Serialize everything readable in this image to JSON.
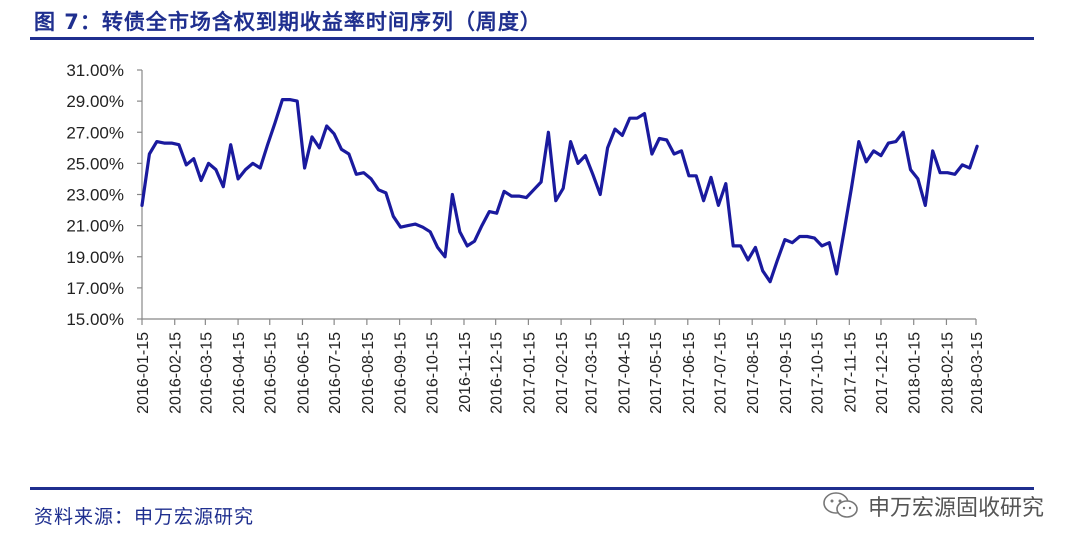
{
  "title": "图 7：转债全市场含权到期收益率时间序列（周度）",
  "source": "资料来源：申万宏源研究",
  "watermark": "申万宏源固收研究",
  "colors": {
    "accent": "#1f2f8f",
    "line": "#1a1a9e"
  },
  "icons": {
    "watermark_icon": "wechat-icon"
  },
  "chart_data": {
    "type": "line",
    "title": "",
    "xlabel": "",
    "ylabel": "",
    "ylim": [
      15,
      31
    ],
    "yticks": [
      "15.00%",
      "17.00%",
      "19.00%",
      "21.00%",
      "23.00%",
      "25.00%",
      "27.00%",
      "29.00%",
      "31.00%"
    ],
    "xticks": [
      "2016-01-15",
      "2016-02-15",
      "2016-03-15",
      "2016-04-15",
      "2016-05-15",
      "2016-06-15",
      "2016-07-15",
      "2016-08-15",
      "2016-09-15",
      "2016-10-15",
      "2016-11-15",
      "2016-12-15",
      "2017-01-15",
      "2017-02-15",
      "2017-03-15",
      "2017-04-15",
      "2017-05-15",
      "2017-06-15",
      "2017-07-15",
      "2017-08-15",
      "2017-09-15",
      "2017-10-15",
      "2017-11-15",
      "2017-12-15",
      "2018-01-15",
      "2018-02-15",
      "2018-03-15"
    ],
    "grid": false,
    "legend": "none",
    "series": [
      {
        "x": [
          "2016-01-15",
          "2016-01-22",
          "2016-01-29",
          "2016-02-05",
          "2016-02-12",
          "2016-02-19",
          "2016-02-26",
          "2016-03-04",
          "2016-03-11",
          "2016-03-18",
          "2016-03-25",
          "2016-04-01",
          "2016-04-08",
          "2016-04-15",
          "2016-04-22",
          "2016-04-29",
          "2016-05-06",
          "2016-05-13",
          "2016-05-20",
          "2016-05-27",
          "2016-06-03",
          "2016-06-10",
          "2016-06-17",
          "2016-06-24",
          "2016-07-01",
          "2016-07-08",
          "2016-07-15",
          "2016-07-22",
          "2016-07-29",
          "2016-08-05",
          "2016-08-12",
          "2016-08-19",
          "2016-08-26",
          "2016-09-02",
          "2016-09-09",
          "2016-09-16",
          "2016-09-23",
          "2016-09-30",
          "2016-10-07",
          "2016-10-14",
          "2016-10-21",
          "2016-10-28",
          "2016-11-04",
          "2016-11-11",
          "2016-11-18",
          "2016-11-25",
          "2016-12-02",
          "2016-12-09",
          "2016-12-16",
          "2016-12-23",
          "2016-12-30",
          "2017-01-06",
          "2017-01-13",
          "2017-01-20",
          "2017-01-27",
          "2017-02-03",
          "2017-02-10",
          "2017-02-17",
          "2017-02-24",
          "2017-03-03",
          "2017-03-10",
          "2017-03-17",
          "2017-03-24",
          "2017-03-31",
          "2017-04-07",
          "2017-04-14",
          "2017-04-21",
          "2017-04-28",
          "2017-05-05",
          "2017-05-12",
          "2017-05-19",
          "2017-05-26",
          "2017-06-02",
          "2017-06-09",
          "2017-06-16",
          "2017-06-23",
          "2017-06-30",
          "2017-07-07",
          "2017-07-14",
          "2017-07-21",
          "2017-07-28",
          "2017-08-04",
          "2017-08-11",
          "2017-08-18",
          "2017-08-25",
          "2017-09-01",
          "2017-09-08",
          "2017-09-15",
          "2017-09-22",
          "2017-09-29",
          "2017-10-06",
          "2017-10-13",
          "2017-10-20",
          "2017-10-27",
          "2017-11-03",
          "2017-11-10",
          "2017-11-17",
          "2017-11-24",
          "2017-12-01",
          "2017-12-08",
          "2017-12-15",
          "2017-12-22",
          "2017-12-29",
          "2018-01-05",
          "2018-01-12",
          "2018-01-19",
          "2018-01-26",
          "2018-02-02",
          "2018-02-09",
          "2018-02-16",
          "2018-02-23",
          "2018-03-02",
          "2018-03-09",
          "2018-03-16"
        ],
        "values": [
          22.3,
          25.6,
          26.4,
          26.3,
          26.3,
          26.2,
          24.9,
          25.3,
          23.9,
          25.0,
          24.6,
          23.5,
          26.2,
          24.0,
          24.6,
          25.0,
          24.7,
          26.2,
          27.6,
          29.1,
          29.1,
          29.0,
          24.7,
          26.7,
          26.0,
          27.4,
          26.9,
          25.9,
          25.6,
          24.3,
          24.4,
          24.0,
          23.3,
          23.1,
          21.6,
          20.9,
          21.0,
          21.1,
          20.9,
          20.6,
          19.6,
          19.0,
          23.0,
          20.6,
          19.7,
          20.0,
          21.0,
          21.9,
          21.8,
          23.2,
          22.9,
          22.9,
          22.8,
          23.3,
          23.8,
          27.0,
          22.6,
          23.4,
          26.4,
          25.0,
          25.5,
          24.3,
          23.0,
          26.0,
          27.2,
          26.8,
          27.9,
          27.9,
          28.2,
          25.6,
          26.6,
          26.5,
          25.6,
          25.8,
          24.2,
          24.2,
          22.6,
          24.1,
          22.3,
          23.7,
          19.7,
          19.7,
          18.8,
          19.6,
          18.1,
          17.4,
          18.8,
          20.1,
          19.9,
          20.3,
          20.3,
          20.2,
          19.7,
          19.9,
          17.9,
          20.6,
          23.4,
          26.4,
          25.1,
          25.8,
          25.5,
          26.3,
          26.4,
          27.0,
          24.6,
          24.0,
          22.3,
          25.8,
          24.4,
          24.4,
          24.3,
          24.9,
          24.7,
          26.1
        ]
      }
    ]
  }
}
